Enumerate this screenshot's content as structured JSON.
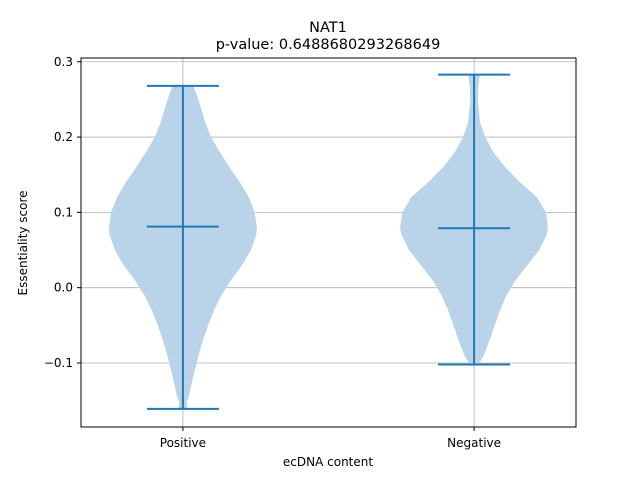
{
  "chart_data": {
    "type": "violin",
    "title": "NAT1",
    "subtitle": "p-value: 0.6488680293268649",
    "xlabel": "ecDNA content",
    "ylabel": "Essentiality score",
    "categories": [
      "Positive",
      "Negative"
    ],
    "ylim": [
      -0.185,
      0.305
    ],
    "yticks": [
      -0.1,
      0.0,
      0.1,
      0.2,
      0.3
    ],
    "ytick_labels": [
      "−0.1",
      "0.0",
      "0.1",
      "0.2",
      "0.3"
    ],
    "grid": true,
    "colors": {
      "fill": "#b9d4e8",
      "line": "#1f77b4",
      "grid": "#b0b0b0"
    },
    "violins": [
      {
        "category": "Positive",
        "min": -0.161,
        "max": 0.268,
        "median": 0.081,
        "density": [
          [
            0.268,
            0.14
          ],
          [
            0.255,
            0.19
          ],
          [
            0.24,
            0.24
          ],
          [
            0.22,
            0.3
          ],
          [
            0.2,
            0.38
          ],
          [
            0.18,
            0.5
          ],
          [
            0.16,
            0.63
          ],
          [
            0.14,
            0.77
          ],
          [
            0.12,
            0.89
          ],
          [
            0.1,
            0.97
          ],
          [
            0.08,
            1.0
          ],
          [
            0.07,
            0.99
          ],
          [
            0.05,
            0.92
          ],
          [
            0.03,
            0.8
          ],
          [
            0.01,
            0.65
          ],
          [
            -0.01,
            0.52
          ],
          [
            -0.03,
            0.42
          ],
          [
            -0.05,
            0.34
          ],
          [
            -0.07,
            0.27
          ],
          [
            -0.09,
            0.21
          ],
          [
            -0.11,
            0.16
          ],
          [
            -0.13,
            0.11
          ],
          [
            -0.145,
            0.08
          ],
          [
            -0.152,
            0.05
          ],
          [
            -0.161,
            0.06
          ]
        ]
      },
      {
        "category": "Negative",
        "min": -0.102,
        "max": 0.283,
        "median": 0.079,
        "density": [
          [
            0.283,
            0.08
          ],
          [
            0.27,
            0.06
          ],
          [
            0.25,
            0.05
          ],
          [
            0.22,
            0.08
          ],
          [
            0.2,
            0.15
          ],
          [
            0.18,
            0.26
          ],
          [
            0.16,
            0.42
          ],
          [
            0.14,
            0.62
          ],
          [
            0.12,
            0.85
          ],
          [
            0.1,
            0.97
          ],
          [
            0.08,
            1.0
          ],
          [
            0.07,
            0.98
          ],
          [
            0.05,
            0.88
          ],
          [
            0.03,
            0.72
          ],
          [
            0.01,
            0.56
          ],
          [
            -0.01,
            0.44
          ],
          [
            -0.03,
            0.35
          ],
          [
            -0.05,
            0.28
          ],
          [
            -0.07,
            0.21
          ],
          [
            -0.09,
            0.13
          ],
          [
            -0.102,
            0.06
          ]
        ]
      }
    ]
  }
}
